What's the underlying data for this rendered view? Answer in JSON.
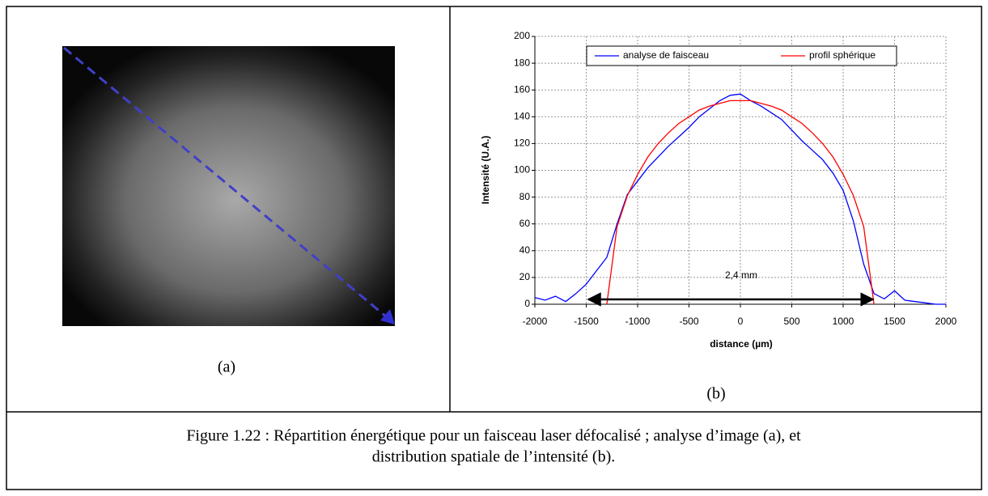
{
  "panel_a": {
    "label": "(a)"
  },
  "chart_data": {
    "type": "line",
    "panel_label": "(b)",
    "x_label": "distance (µm)",
    "y_label": "Intensité (U.A.)",
    "annotation": "2,4 mm",
    "x": [
      -2000,
      -1900,
      -1800,
      -1700,
      -1600,
      -1500,
      -1400,
      -1300,
      -1200,
      -1100,
      -1000,
      -900,
      -800,
      -700,
      -600,
      -500,
      -400,
      -300,
      -200,
      -100,
      0,
      100,
      200,
      300,
      400,
      500,
      600,
      700,
      800,
      900,
      1000,
      1100,
      1200,
      1300,
      1400,
      1500,
      1600,
      1700,
      1800,
      1900,
      2000
    ],
    "series": [
      {
        "name": "analyse de faisceau",
        "color": "#0000ff",
        "values": [
          5,
          3,
          6,
          2,
          8,
          15,
          25,
          35,
          60,
          82,
          92,
          102,
          110,
          118,
          125,
          132,
          140,
          146,
          152,
          156,
          157,
          152,
          148,
          143,
          138,
          130,
          122,
          115,
          108,
          98,
          85,
          62,
          30,
          8,
          4,
          10,
          3,
          2,
          1,
          0,
          0
        ]
      },
      {
        "name": "profil sphérique",
        "color": "#ff0000",
        "values": [
          null,
          null,
          null,
          null,
          null,
          null,
          null,
          0,
          58,
          81,
          97,
          110,
          120,
          128,
          135,
          140,
          145,
          148,
          150,
          152,
          152,
          152,
          150,
          148,
          145,
          140,
          135,
          128,
          120,
          110,
          97,
          81,
          58,
          0,
          null,
          null,
          null,
          null,
          null,
          null,
          null
        ]
      }
    ],
    "xlim": [
      -2000,
      2000
    ],
    "xticks": [
      -2000,
      -1500,
      -1000,
      -500,
      0,
      500,
      1000,
      1500,
      2000
    ],
    "ylim": [
      0,
      200
    ],
    "yticks": [
      0,
      20,
      40,
      60,
      80,
      100,
      120,
      140,
      160,
      180,
      200
    ],
    "grid": true,
    "legend": "top"
  },
  "caption": [
    "Figure 1.22 : Répartition énergétique pour un faisceau laser défocalisé ; analyse d’image (a), et",
    "distribution spatiale de l’intensité (b)."
  ]
}
